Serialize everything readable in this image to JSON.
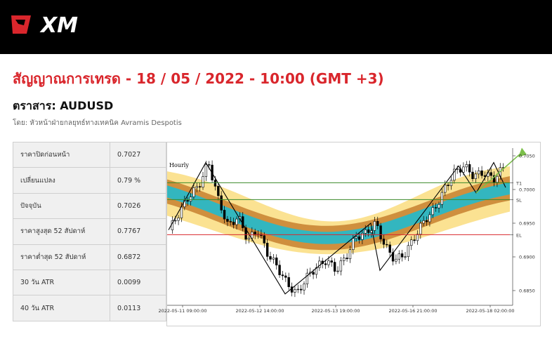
{
  "brand": {
    "name": "XM"
  },
  "header": {
    "title": "สัญญาณการเทรด - 18 / 05 / 2022 - 10:00 (GMT +3)",
    "instrument_label": "ตราสาร: AUDUSD",
    "author": "โดย: หัวหน้าฝ่ายกลยุทธ์ทางเทคนิค Avramis Despotis"
  },
  "stats": [
    {
      "label": "ราคาปิดก่อนหน้า",
      "value": "0.7027"
    },
    {
      "label": "เปลี่ยนแปลง",
      "value": "0.79 %"
    },
    {
      "label": "ปัจจุบัน",
      "value": "0.7026"
    },
    {
      "label": "ราคาสูงสุด 52 สัปดาห์",
      "value": "0.7767"
    },
    {
      "label": "ราคาต่ำสุด 52 สัปดาห์",
      "value": "0.6872"
    },
    {
      "label": "30 วัน ATR",
      "value": "0.0099"
    },
    {
      "label": "40 วัน ATR",
      "value": "0.0113"
    }
  ],
  "chart": {
    "timeframe": "Hourly",
    "x_labels": [
      "2022-05-11 09:00:00",
      "2022-05-12 14:00:00",
      "2022-05-13 19:00:00",
      "2022-05-16 21:00:00",
      "2022-05-18 02:00:00"
    ],
    "y_labels": [
      "0.7050",
      "0.7000",
      "0.6950",
      "0.6900",
      "0.6850"
    ],
    "levels": [
      {
        "label": "T1",
        "value": 0.701,
        "color": "#3a8a2a"
      },
      {
        "label": "SL",
        "value": 0.6985,
        "color": "#3a8a2a"
      },
      {
        "label": "EL",
        "value": 0.6933,
        "color": "#d9262c"
      }
    ],
    "colors": {
      "outer_band": "#fbe08c",
      "mid_band": "#cc8a3a",
      "inner_band": "#2ab8c6",
      "arrow": "#7cc04a"
    }
  }
}
